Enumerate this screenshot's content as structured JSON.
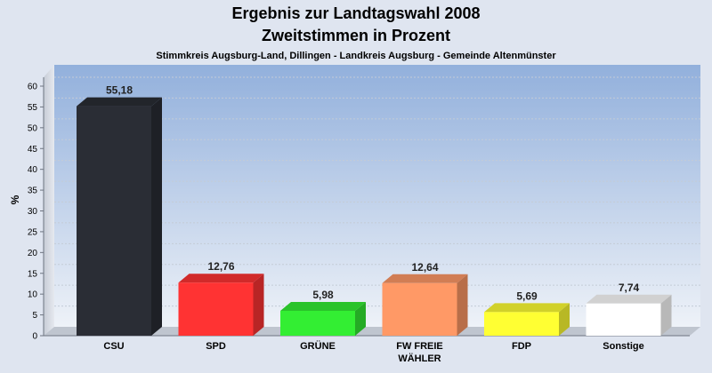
{
  "chart_data": {
    "type": "bar",
    "title": "Ergebnis zur Landtagswahl 2008",
    "title2": "Zweitstimmen in Prozent",
    "subtitle": "Stimmkreis Augsburg-Land, Dillingen - Landkreis Augsburg - Gemeinde Altenmünster",
    "ylabel": "%",
    "xlabel": "",
    "ylim": [
      0,
      60
    ],
    "yticks": [
      "0",
      "5",
      "10",
      "15",
      "20",
      "25",
      "30",
      "35",
      "40",
      "45",
      "50",
      "55",
      "60"
    ],
    "grid": true,
    "legend": "none",
    "categories": [
      "CSU",
      "SPD",
      "GRÜNE",
      "FW FREIE WÄHLER",
      "FDP",
      "Sonstige"
    ],
    "category_lines": [
      [
        "CSU"
      ],
      [
        "SPD"
      ],
      [
        "GRÜNE"
      ],
      [
        "FW FREIE",
        "WÄHLER"
      ],
      [
        "FDP"
      ],
      [
        "Sonstige"
      ]
    ],
    "values": [
      55.18,
      12.76,
      5.98,
      12.64,
      5.69,
      7.74
    ],
    "data_labels": [
      "55,18",
      "12,76",
      "5,98",
      "12,64",
      "5,69",
      "7,74"
    ],
    "colors": [
      "#2a2d35",
      "#ff3333",
      "#33ee33",
      "#ff9966",
      "#ffff33",
      "#ffffff"
    ]
  }
}
